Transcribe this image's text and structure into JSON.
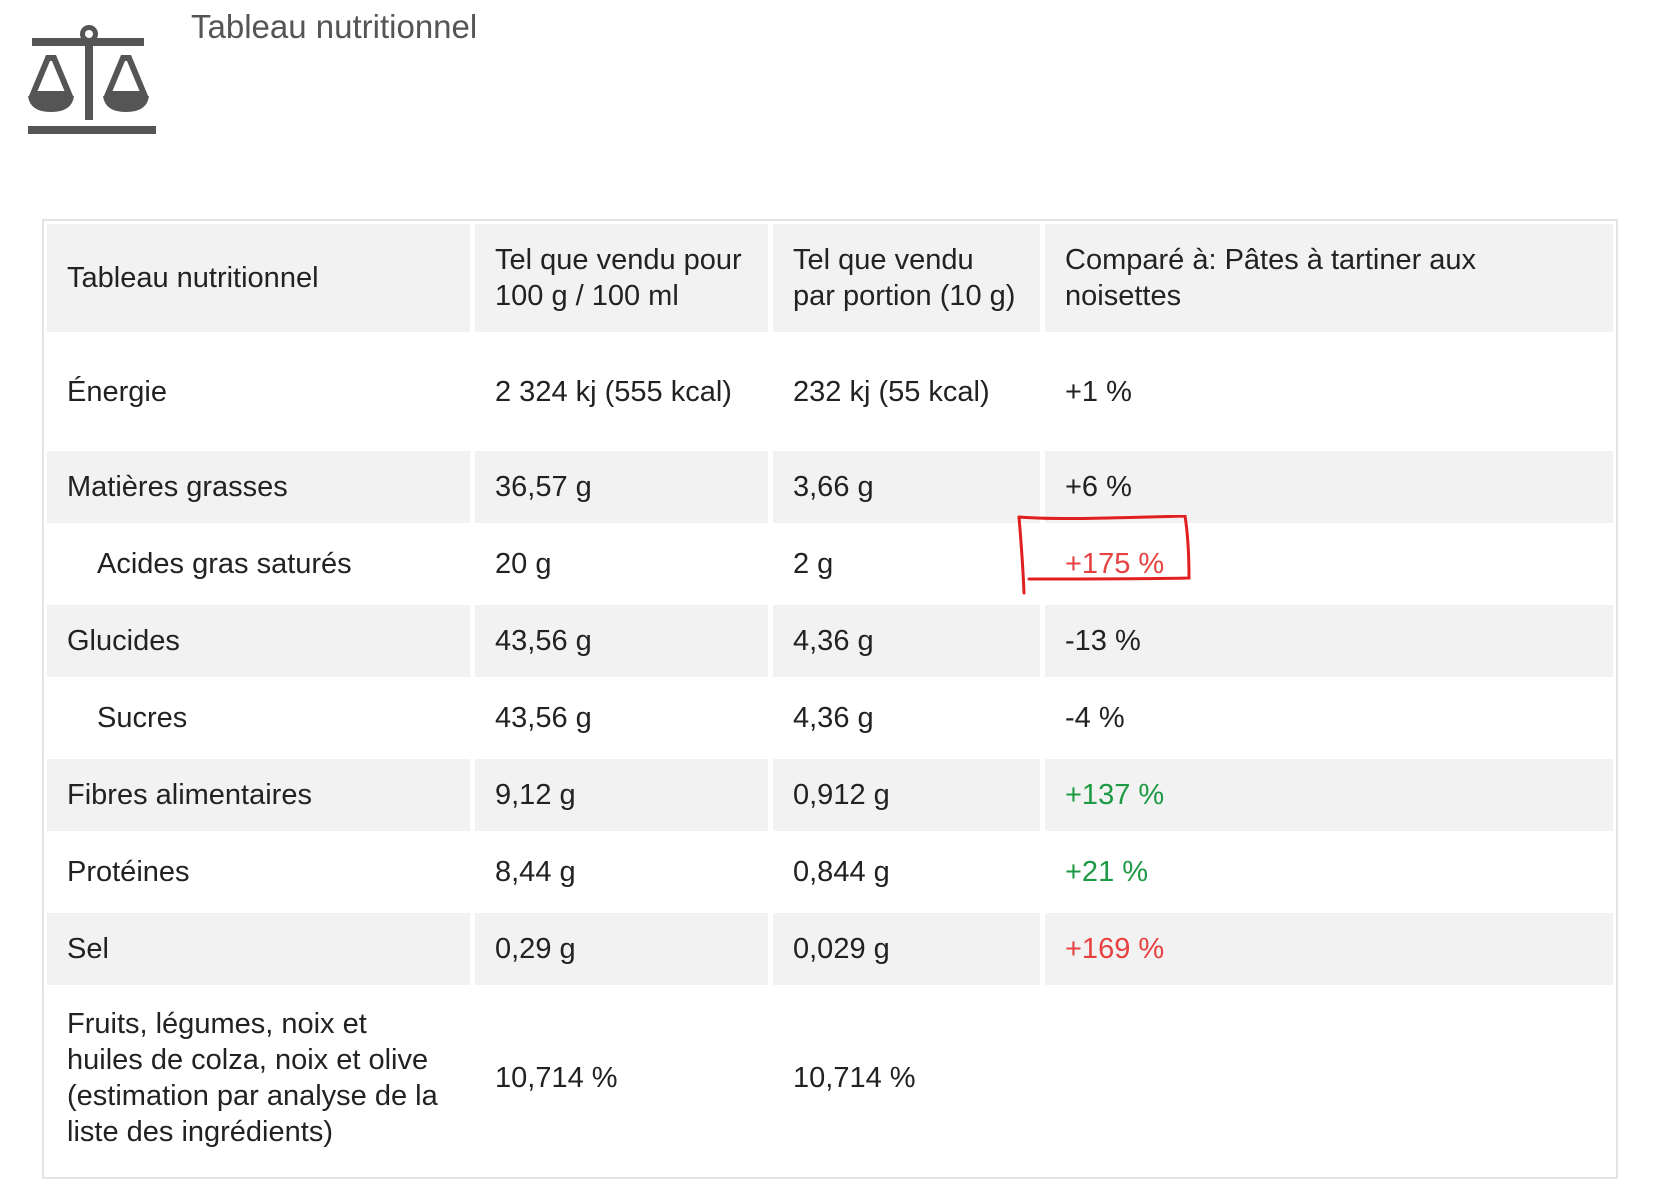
{
  "header": {
    "title": "Tableau nutritionnel",
    "icon": "balance-scale-icon"
  },
  "table": {
    "headers": [
      "Tableau nutritionnel",
      "Tel que vendu pour 100 g / 100 ml",
      "Tel que vendu par portion (10 g)",
      "Comparé à: Pâtes à tartiner aux noisettes"
    ],
    "rows": [
      {
        "name": "Énergie",
        "per100": "2 324 kj (555 kcal)",
        "portion": "232 kj (55 kcal)",
        "compare": "+1 %",
        "status": "neutral"
      },
      {
        "name": "Matières grasses",
        "per100": "36,57 g",
        "portion": "3,66 g",
        "compare": "+6 %",
        "status": "neutral"
      },
      {
        "name": "Acides gras saturés",
        "per100": "20 g",
        "portion": "2 g",
        "compare": "+175 %",
        "status": "bad"
      },
      {
        "name": "Glucides",
        "per100": "43,56 g",
        "portion": "4,36 g",
        "compare": "-13 %",
        "status": "neutral"
      },
      {
        "name": "Sucres",
        "per100": "43,56 g",
        "portion": "4,36 g",
        "compare": "-4 %",
        "status": "neutral"
      },
      {
        "name": "Fibres alimentaires",
        "per100": "9,12 g",
        "portion": "0,912 g",
        "compare": "+137 %",
        "status": "good"
      },
      {
        "name": "Protéines",
        "per100": "8,44 g",
        "portion": "0,844 g",
        "compare": "+21 %",
        "status": "good"
      },
      {
        "name": "Sel",
        "per100": "0,29 g",
        "portion": "0,029 g",
        "compare": "+169 %",
        "status": "bad"
      },
      {
        "name": "Fruits, légumes, noix et huiles de colza, noix et olive (estimation par analyse de la liste des ingrédients)",
        "per100": "10,714 %",
        "portion": "10,714 %",
        "compare": "",
        "status": "neutral"
      }
    ]
  },
  "colors": {
    "bad": "#e84141",
    "good": "#1e9a44",
    "annotation": "#e02020"
  }
}
